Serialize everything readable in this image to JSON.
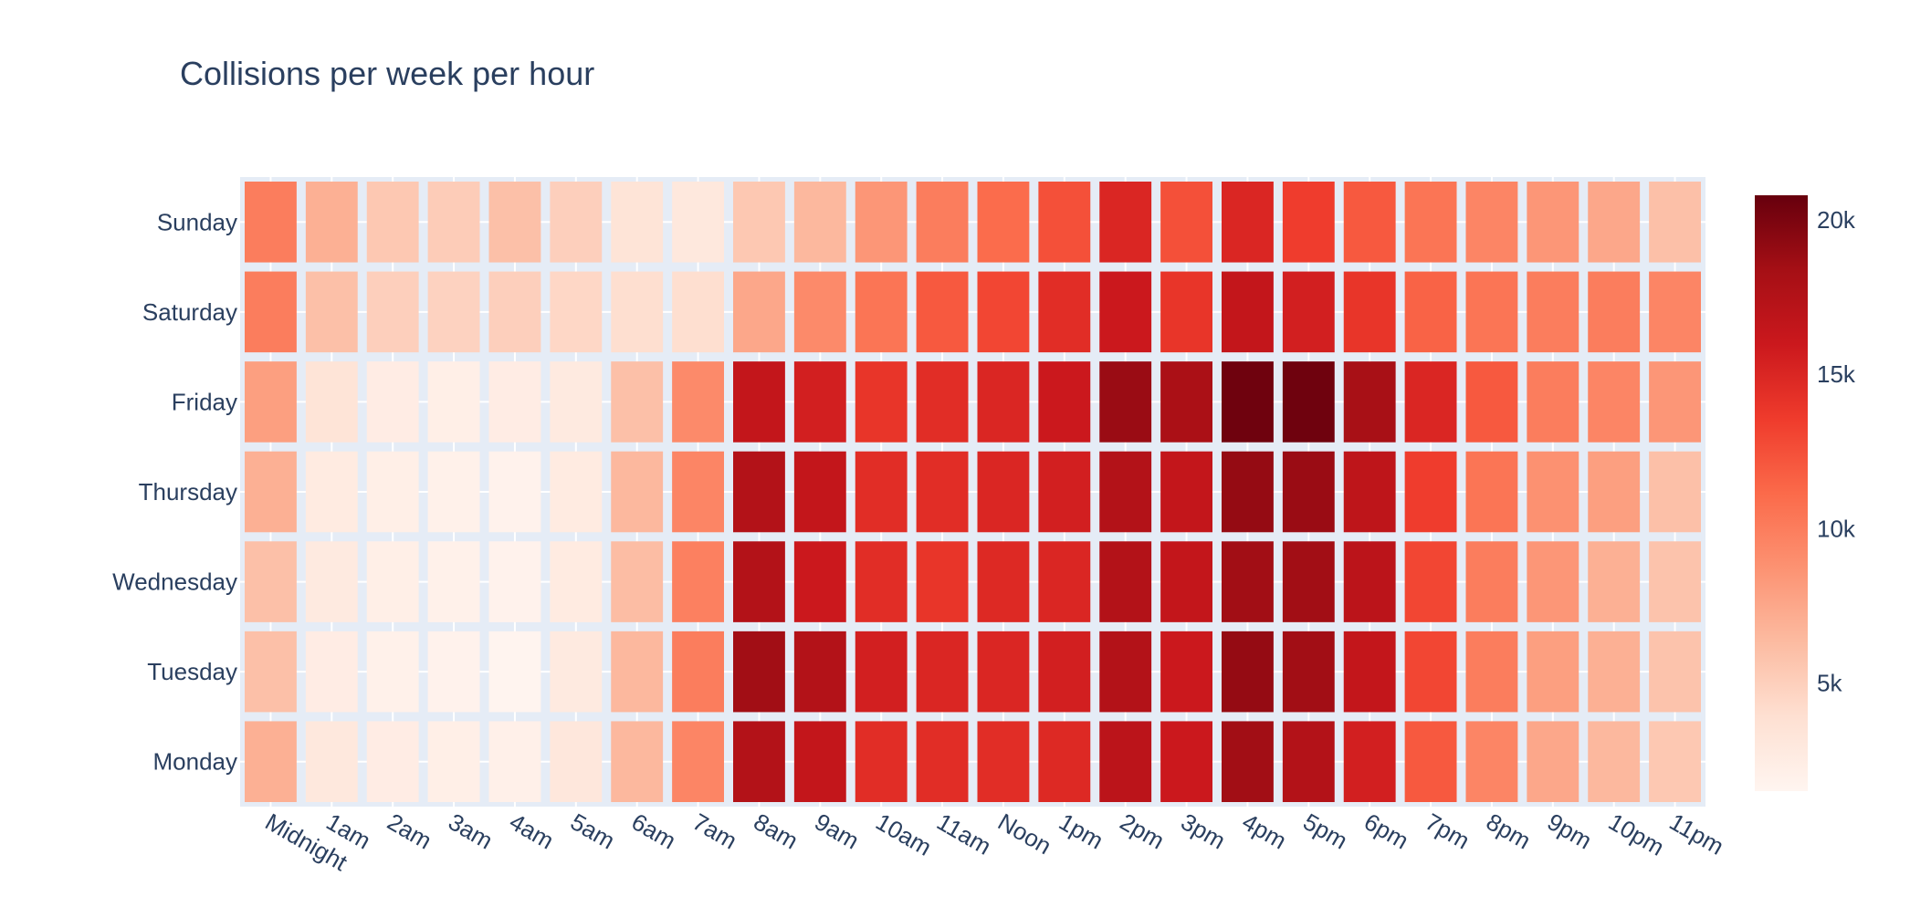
{
  "chart_data": {
    "type": "heatmap",
    "title": "Collisions per week per hour",
    "x": [
      "Midnight",
      "1am",
      "2am",
      "3am",
      "4am",
      "5am",
      "6am",
      "7am",
      "8am",
      "9am",
      "10am",
      "11am",
      "Noon",
      "1pm",
      "2pm",
      "3pm",
      "4pm",
      "5pm",
      "6pm",
      "7pm",
      "8pm",
      "9pm",
      "10pm",
      "11pm"
    ],
    "y": [
      "Monday",
      "Tuesday",
      "Wednesday",
      "Thursday",
      "Friday",
      "Saturday",
      "Sunday"
    ],
    "z": [
      [
        7000,
        3000,
        2500,
        2200,
        2100,
        3100,
        6500,
        9500,
        17500,
        16500,
        14500,
        14500,
        14500,
        14800,
        17000,
        16000,
        18500,
        17500,
        15500,
        12000,
        9500,
        7500,
        6500,
        5500
      ],
      [
        6000,
        2500,
        2000,
        1800,
        1600,
        2800,
        6500,
        10000,
        18500,
        17500,
        15500,
        15000,
        15000,
        15500,
        17500,
        16000,
        19000,
        18500,
        16500,
        13000,
        10000,
        8000,
        7000,
        5800
      ],
      [
        6000,
        2800,
        2200,
        2000,
        1800,
        2700,
        6200,
        9800,
        17500,
        16000,
        14500,
        14000,
        14800,
        15000,
        17500,
        16500,
        18500,
        18500,
        17000,
        13000,
        10000,
        8500,
        7000,
        5800
      ],
      [
        7000,
        2700,
        2200,
        2000,
        1800,
        2700,
        6500,
        9500,
        17500,
        16500,
        14500,
        14500,
        15000,
        15500,
        17500,
        16500,
        19000,
        18800,
        16800,
        13500,
        10500,
        8800,
        8000,
        6000
      ],
      [
        8000,
        3500,
        2500,
        2200,
        2500,
        2800,
        6000,
        9200,
        16500,
        15500,
        14000,
        14500,
        15000,
        16000,
        18800,
        18000,
        20500,
        20500,
        18200,
        15000,
        12000,
        10000,
        9500,
        8500
      ],
      [
        10000,
        6000,
        5000,
        4800,
        5000,
        4500,
        4000,
        4000,
        7500,
        9200,
        10500,
        12000,
        13000,
        14500,
        16000,
        14000,
        16500,
        15500,
        14000,
        11500,
        10500,
        10000,
        10000,
        9500
      ],
      [
        10000,
        7000,
        5500,
        5200,
        6000,
        5000,
        3500,
        3000,
        5500,
        6500,
        8500,
        10000,
        11000,
        12500,
        15000,
        12500,
        15000,
        13500,
        12000,
        10500,
        9500,
        8500,
        7500,
        6000
      ]
    ],
    "colorbar": {
      "ticks": [
        5000,
        10000,
        15000,
        20000
      ],
      "ticklabels": [
        "5k",
        "10k",
        "15k",
        "20k"
      ],
      "range": [
        1500,
        20800
      ],
      "colorscale": "Reds"
    },
    "colors": {
      "plot_bg": "#e5ecf6",
      "grid": "#ffffff",
      "text": "#2a3f5f"
    }
  }
}
